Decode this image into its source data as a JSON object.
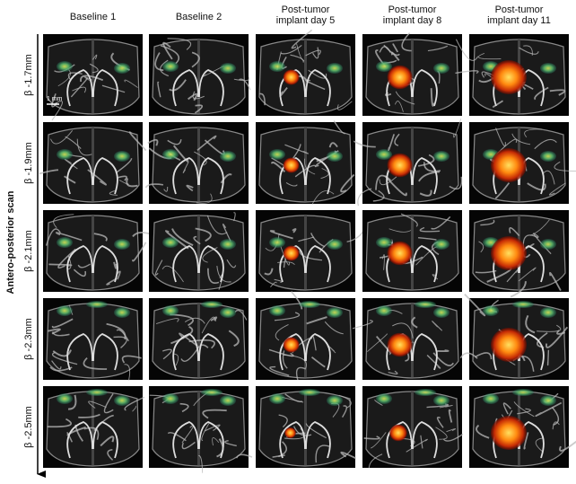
{
  "columns": [
    [
      "Baseline 1"
    ],
    [
      "Baseline 2"
    ],
    [
      "Post-tumor",
      "implant day 5"
    ],
    [
      "Post-tumor",
      "implant day 8"
    ],
    [
      "Post-tumor",
      "implant day 11"
    ]
  ],
  "rows": [
    "β -1.7mm",
    "β -1.9mm",
    "β -2.1mm",
    "β -2.3mm",
    "β -2.5mm"
  ],
  "axis_label": "Antero-posterior scan",
  "scale_bar": "1 mm"
}
